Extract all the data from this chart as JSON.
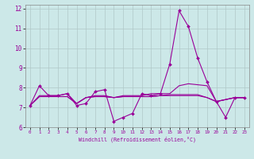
{
  "xlabel": "Windchill (Refroidissement éolien,°C)",
  "bg_color": "#cce8e8",
  "line_color": "#990099",
  "grid_color": "#b0c8c8",
  "xlim": [
    -0.5,
    23.5
  ],
  "ylim": [
    6,
    12.2
  ],
  "yticks": [
    6,
    7,
    8,
    9,
    10,
    11,
    12
  ],
  "xticks": [
    0,
    1,
    2,
    3,
    4,
    5,
    6,
    7,
    8,
    9,
    10,
    11,
    12,
    13,
    14,
    15,
    16,
    17,
    18,
    19,
    20,
    21,
    22,
    23
  ],
  "series_main": [
    7.1,
    8.1,
    7.6,
    7.6,
    7.7,
    7.1,
    7.2,
    7.8,
    7.9,
    6.3,
    6.5,
    6.7,
    7.7,
    7.6,
    7.7,
    9.2,
    11.9,
    11.1,
    9.5,
    8.3,
    7.3,
    6.5,
    7.5,
    7.5
  ],
  "series_flat1": [
    7.1,
    7.6,
    7.6,
    7.6,
    7.7,
    7.2,
    7.5,
    7.6,
    7.6,
    7.5,
    7.6,
    7.6,
    7.6,
    7.7,
    7.7,
    7.7,
    8.1,
    8.2,
    8.15,
    8.1,
    7.3,
    7.4,
    7.5,
    7.5
  ],
  "series_flat2": [
    7.1,
    7.55,
    7.55,
    7.55,
    7.55,
    7.2,
    7.5,
    7.55,
    7.55,
    7.5,
    7.55,
    7.55,
    7.55,
    7.55,
    7.6,
    7.65,
    7.65,
    7.65,
    7.65,
    7.5,
    7.3,
    7.4,
    7.5,
    7.5
  ],
  "series_flat3": [
    7.1,
    7.55,
    7.55,
    7.55,
    7.55,
    7.2,
    7.5,
    7.55,
    7.55,
    7.5,
    7.55,
    7.55,
    7.55,
    7.55,
    7.6,
    7.6,
    7.6,
    7.6,
    7.6,
    7.5,
    7.3,
    7.4,
    7.5,
    7.5
  ]
}
